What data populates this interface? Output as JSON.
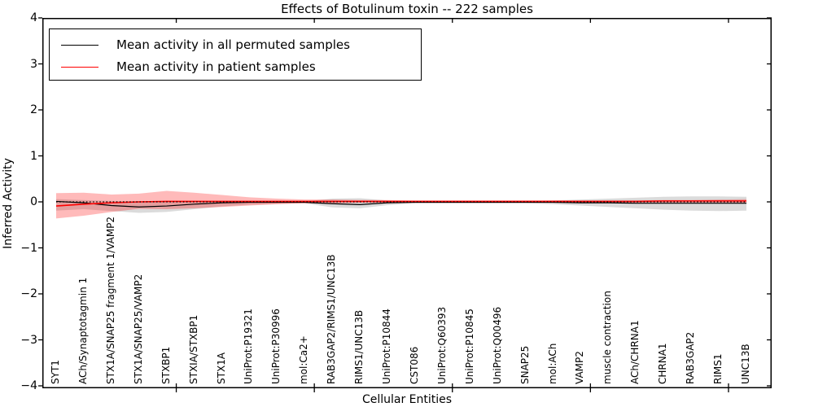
{
  "figure": {
    "title": "Effects of Botulinum toxin -- 222 samples"
  },
  "chart_data": {
    "type": "line",
    "title": "Effects of Botulinum toxin -- 222 samples",
    "xlabel": "Cellular Entities",
    "ylabel": "Inferred Activity",
    "ylim": [
      -4,
      4
    ],
    "grid": false,
    "zero_line": 0,
    "yticks": [
      {
        "label": "4",
        "value": 4
      },
      {
        "label": "3",
        "value": 3
      },
      {
        "label": "2",
        "value": 2
      },
      {
        "label": "1",
        "value": 1
      },
      {
        "label": "0",
        "value": 0
      },
      {
        "label": "−1",
        "value": -1
      },
      {
        "label": "−2",
        "value": -2
      },
      {
        "label": "−3",
        "value": -3
      },
      {
        "label": "−4",
        "value": -4
      }
    ],
    "categories": [
      "SYT1",
      "ACh/Synaptotagmin 1",
      "STX1A/SNAP25 fragment 1/VAMP2",
      "STX1A/SNAP25/VAMP2",
      "STXBP1",
      "STXIA/STXBP1",
      "STX1A",
      "UniProt:P19321",
      "UniProt:P30996",
      "mol:Ca2+",
      "RAB3GAP2/RIMS1/UNC13B",
      "RIMS1/UNC13B",
      "UniProt:P10844",
      "CST086",
      "UniProt:Q60393",
      "UniProt:P10845",
      "UniProt:Q00496",
      "SNAP25",
      "mol:ACh",
      "VAMP2",
      "muscle contraction",
      "ACh/CHRNA1",
      "CHRNA1",
      "RAB3GAP2",
      "RIMS1",
      "UNC13B"
    ],
    "series": [
      {
        "name": "Mean activity in all permuted samples",
        "color": "#000000",
        "width": 1.2,
        "values": [
          0.01,
          -0.02,
          -0.08,
          -0.11,
          -0.09,
          -0.05,
          -0.02,
          -0.01,
          -0.01,
          -0.01,
          -0.04,
          -0.06,
          -0.02,
          -0.01,
          -0.01,
          -0.01,
          -0.01,
          -0.01,
          -0.01,
          -0.02,
          -0.02,
          -0.03,
          -0.03,
          -0.03,
          -0.03,
          -0.03
        ]
      },
      {
        "name": "Mean activity in patient samples",
        "color": "#ff0000",
        "width": 1.6,
        "values": [
          -0.09,
          -0.05,
          -0.02,
          0.0,
          0.01,
          0.01,
          0.01,
          0.01,
          0.01,
          0.01,
          0.01,
          0.01,
          0.01,
          0.01,
          0.01,
          0.01,
          0.01,
          0.01,
          0.01,
          0.01,
          0.01,
          0.01,
          0.02,
          0.02,
          0.02,
          0.02
        ]
      }
    ],
    "bands": [
      {
        "name": "permuted-samples-spread",
        "color": "rgba(0,0,0,0.14)",
        "upper": [
          0.06,
          0.04,
          0.02,
          0.01,
          0.01,
          0.02,
          0.02,
          0.02,
          0.01,
          0.01,
          0.07,
          0.08,
          0.03,
          0.01,
          0.01,
          0.01,
          0.01,
          0.02,
          0.03,
          0.05,
          0.07,
          0.09,
          0.11,
          0.12,
          0.12,
          0.11
        ],
        "lower": [
          -0.19,
          -0.16,
          -0.2,
          -0.24,
          -0.22,
          -0.16,
          -0.1,
          -0.06,
          -0.04,
          -0.03,
          -0.12,
          -0.14,
          -0.07,
          -0.03,
          -0.03,
          -0.03,
          -0.03,
          -0.03,
          -0.05,
          -0.08,
          -0.11,
          -0.14,
          -0.17,
          -0.19,
          -0.2,
          -0.19
        ]
      },
      {
        "name": "patient-samples-spread",
        "color": "rgba(255,0,0,0.27)",
        "upper": [
          0.19,
          0.2,
          0.16,
          0.18,
          0.24,
          0.2,
          0.15,
          0.1,
          0.07,
          0.05,
          0.05,
          0.04,
          0.04,
          0.03,
          0.03,
          0.03,
          0.03,
          0.03,
          0.03,
          0.03,
          0.03,
          0.03,
          0.04,
          0.04,
          0.05,
          0.06
        ],
        "lower": [
          -0.36,
          -0.3,
          -0.22,
          -0.15,
          -0.16,
          -0.14,
          -0.11,
          -0.08,
          -0.05,
          -0.03,
          -0.03,
          -0.02,
          -0.02,
          -0.02,
          -0.02,
          -0.02,
          -0.02,
          -0.02,
          -0.02,
          -0.02,
          -0.02,
          -0.02,
          -0.02,
          -0.02,
          -0.02,
          -0.03
        ]
      }
    ],
    "legend": {
      "position": "upper left",
      "entries": [
        {
          "label": "Mean activity in all permuted samples",
          "color": "#000000"
        },
        {
          "label": "Mean activity in patient samples",
          "color": "#ff0000"
        }
      ]
    }
  }
}
